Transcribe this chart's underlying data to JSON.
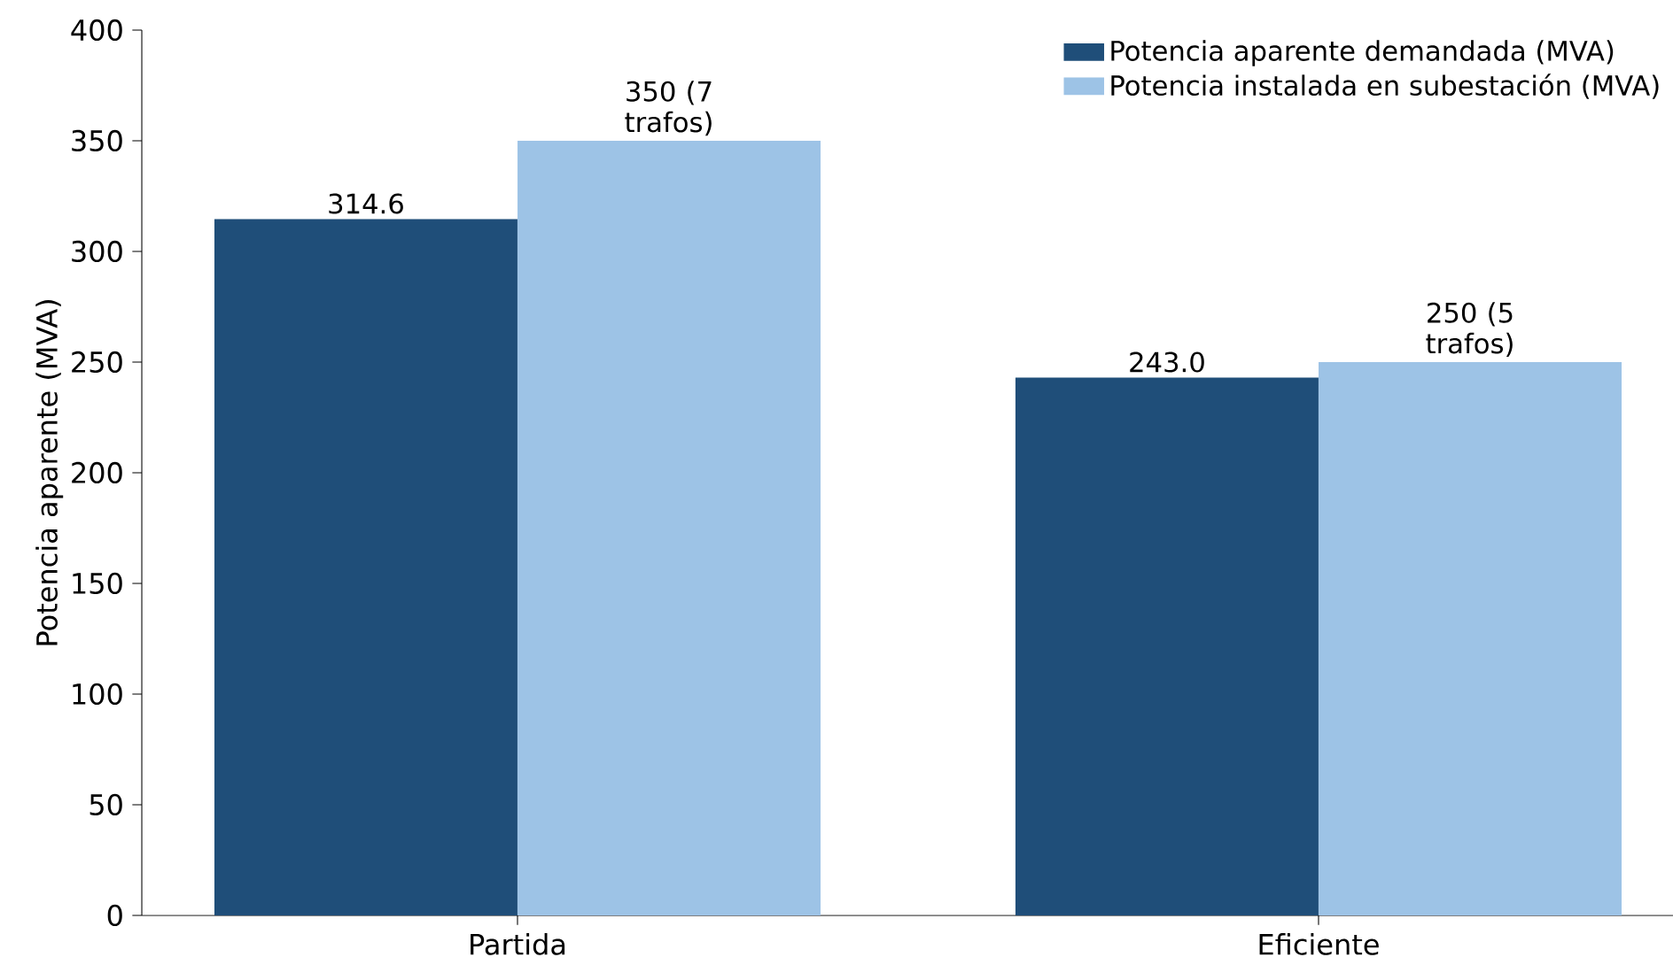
{
  "chart_data": {
    "type": "bar",
    "ylabel": "Potencia aparente (MVA)",
    "categories": [
      "Partida",
      "Eficiente"
    ],
    "series": [
      {
        "name": "Potencia aparente demandada (MVA)",
        "color": "#1f4e79",
        "values": [
          314.6,
          243.0
        ],
        "value_labels": [
          "314.6",
          "243.0"
        ]
      },
      {
        "name": "Potencia instalada en subestación (MVA)",
        "color": "#9dc3e6",
        "values": [
          350,
          250
        ],
        "value_labels": [
          "350 (7 trafos)",
          "250 (5 trafos)"
        ]
      }
    ],
    "ylim": [
      0,
      400
    ],
    "yticks": [
      0,
      50,
      100,
      150,
      200,
      250,
      300,
      350,
      400
    ],
    "grid": false,
    "legend": "top right"
  }
}
